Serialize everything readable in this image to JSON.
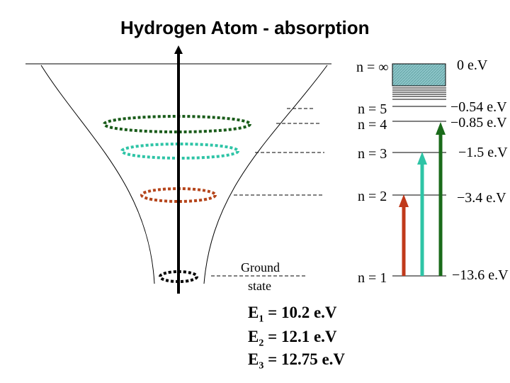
{
  "title": "Hydrogen Atom - absorption",
  "ground_label": [
    "Ground",
    "state"
  ],
  "levels": [
    {
      "n_label": "n = ∞",
      "energy": "0 e.V"
    },
    {
      "n_label": "n = 5",
      "energy": "−0.54 e.V"
    },
    {
      "n_label": "n = 4",
      "energy": "−0.85 e.V"
    },
    {
      "n_label": "n = 3",
      "energy": "−1.5 e.V"
    },
    {
      "n_label": "n = 2",
      "energy": "−3.4 e.V"
    },
    {
      "n_label": "n = 1",
      "energy": "−13.6 e.V"
    }
  ],
  "transitions": [
    {
      "label": "E",
      "sub": "1",
      "value": " = 10.2 e.V",
      "color": "#c0391b"
    },
    {
      "label": "E",
      "sub": "2",
      "value": " = 12.1 e.V",
      "color": "#2ec4a6"
    },
    {
      "label": "E",
      "sub": "3",
      "value": " = 12.75 e.V",
      "color": "#1a6b1a"
    }
  ],
  "colors": {
    "n4_orbit": "#1a5c1a",
    "n3_orbit": "#2ec4a6",
    "n2_orbit": "#b5451b",
    "n1_orbit": "#000000",
    "continuum_fill": "#8cc5c8"
  }
}
